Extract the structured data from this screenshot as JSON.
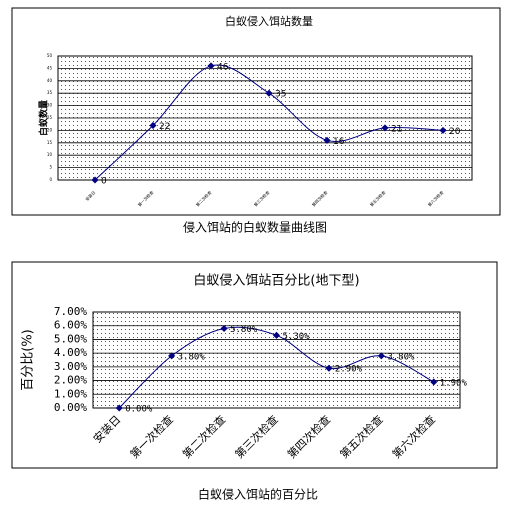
{
  "chart_data": [
    {
      "type": "line",
      "title": "白蚁侵入饵站数量",
      "ylabel": "白蚁数量",
      "caption": "侵入饵站的白蚁数量曲线图",
      "categories": [
        "安装日",
        "第一次检查",
        "第二次检查",
        "第三次检查",
        "第四次检查",
        "第五次检查",
        "第六次检查"
      ],
      "series": [
        {
          "name": "白蚁数量",
          "color": "#000080",
          "values": [
            0,
            22,
            46,
            35,
            16,
            21,
            20
          ]
        }
      ],
      "ylim": [
        0,
        50
      ],
      "yticks": [
        0,
        5,
        10,
        15,
        20,
        25,
        30,
        35,
        40,
        45,
        50
      ],
      "grid": true
    },
    {
      "type": "line",
      "title": "白蚁侵入饵站百分比(地下型)",
      "ylabel": "百分比(%)",
      "caption": "白蚁侵入饵站的百分比",
      "categories": [
        "安装日",
        "第一次检查",
        "第二次检查",
        "第三次检查",
        "第四次检查",
        "第五次检查",
        "第六次检查"
      ],
      "series": [
        {
          "name": "百分比",
          "color": "#000080",
          "values": [
            0,
            3.8,
            5.8,
            5.3,
            2.9,
            3.8,
            1.9
          ],
          "value_labels": [
            "0.00%",
            "3.80%",
            "5.80%",
            "5.30%",
            "2.90%",
            "3.80%",
            "1.90%"
          ]
        }
      ],
      "ylim": [
        0,
        7
      ],
      "yticks": [
        {
          "value": 0,
          "label": "0.00%"
        },
        {
          "value": 1,
          "label": "1.00%"
        },
        {
          "value": 2,
          "label": "2.00%"
        },
        {
          "value": 3,
          "label": "3.00%"
        },
        {
          "value": 4,
          "label": "4.00%"
        },
        {
          "value": 5,
          "label": "5.00%"
        },
        {
          "value": 6,
          "label": "6.00%"
        },
        {
          "value": 7,
          "label": "7.00%"
        }
      ],
      "grid": true
    }
  ]
}
